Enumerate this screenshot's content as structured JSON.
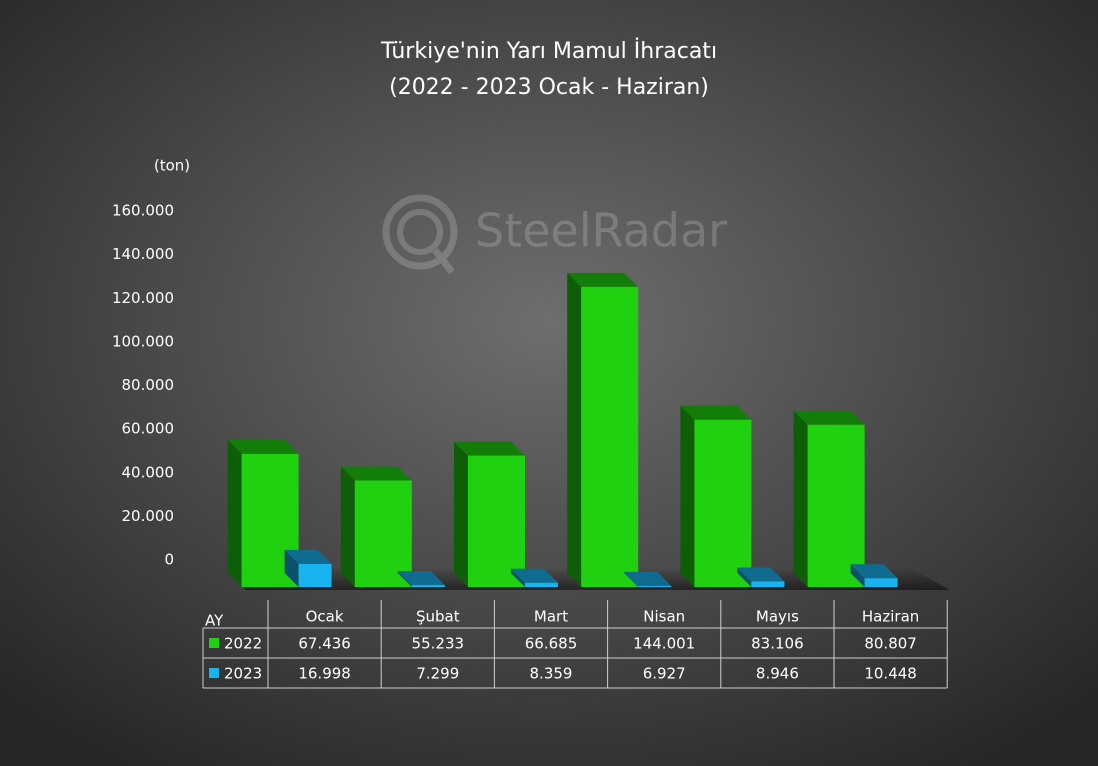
{
  "chart_data": {
    "type": "bar3d",
    "title": "Türkiye'nin Yarı Mamul İhracatı",
    "subtitle": "(2022 - 2023 Ocak - Haziran)",
    "y_axis_label": "(ton)",
    "x_axis_label": "AY",
    "watermark": "SteelRadar",
    "categories": [
      "Ocak",
      "Şubat",
      "Mart",
      "Nisan",
      "Mayıs",
      "Haziran"
    ],
    "series": [
      {
        "name": "2022",
        "color": "#1fd10f",
        "values": [
          67436,
          55233,
          66685,
          144001,
          83106,
          80807
        ],
        "value_labels": [
          "67.436",
          "55.233",
          "66.685",
          "144.001",
          "83.106",
          "80.807"
        ]
      },
      {
        "name": "2023",
        "color": "#19b4f0",
        "values": [
          16998,
          7299,
          8359,
          6927,
          8946,
          10448
        ],
        "value_labels": [
          "16.998",
          "7.299",
          "8.359",
          "6.927",
          "8.946",
          "10.448"
        ]
      }
    ],
    "ylim": [
      0,
      160000
    ],
    "yticks": [
      0,
      {
        "value": 20000,
        "label": "20.000"
      },
      {
        "value": 40000,
        "label": "40.000"
      },
      {
        "value": 60000,
        "label": "60.000"
      },
      {
        "value": 80000,
        "label": "80.000"
      },
      {
        "value": 100000,
        "label": "100.000"
      },
      {
        "value": 120000,
        "label": "120.000"
      },
      {
        "value": 140000,
        "label": "140.000"
      },
      {
        "value": 160000,
        "label": "160.000"
      }
    ],
    "grid": false
  }
}
